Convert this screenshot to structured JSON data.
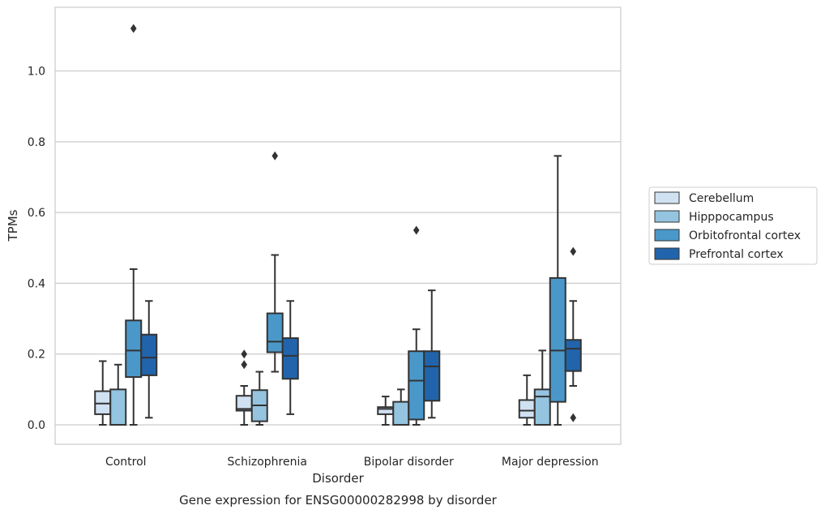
{
  "chart_data": {
    "type": "boxplot",
    "title": "",
    "caption": "Gene expression for ENSG00000282998 by disorder",
    "xlabel": "Disorder",
    "ylabel": "TPMs",
    "ylim": [
      -0.055,
      1.18
    ],
    "yticks": [
      0.0,
      0.2,
      0.4,
      0.6,
      0.8,
      1.0
    ],
    "ytick_labels": [
      "0.0",
      "0.2",
      "0.4",
      "0.6",
      "0.8",
      "1.0"
    ],
    "grid": "horizontal",
    "legend_position": "right",
    "categories": [
      "Control",
      "Schizophrenia",
      "Bipolar disorder",
      "Major depression"
    ],
    "series": [
      {
        "name": "Cerebellum",
        "color": "#d0e1f2",
        "boxes": [
          {
            "whisker_low": 0.0,
            "q1": 0.03,
            "median": 0.06,
            "q3": 0.095,
            "whisker_high": 0.18,
            "outliers": []
          },
          {
            "whisker_low": 0.0,
            "q1": 0.04,
            "median": 0.045,
            "q3": 0.082,
            "whisker_high": 0.11,
            "outliers": [
              0.2,
              0.17
            ]
          },
          {
            "whisker_low": 0.0,
            "q1": 0.03,
            "median": 0.045,
            "q3": 0.05,
            "whisker_high": 0.08,
            "outliers": []
          },
          {
            "whisker_low": 0.0,
            "q1": 0.02,
            "median": 0.04,
            "q3": 0.07,
            "whisker_high": 0.14,
            "outliers": []
          }
        ]
      },
      {
        "name": "Hipppocampus",
        "color": "#94c4df",
        "boxes": [
          {
            "whisker_low": 0.0,
            "q1": 0.0,
            "median": 0.0,
            "q3": 0.1,
            "whisker_high": 0.17,
            "outliers": []
          },
          {
            "whisker_low": 0.0,
            "q1": 0.01,
            "median": 0.055,
            "q3": 0.098,
            "whisker_high": 0.15,
            "outliers": []
          },
          {
            "whisker_low": 0.0,
            "q1": 0.0,
            "median": 0.0,
            "q3": 0.065,
            "whisker_high": 0.1,
            "outliers": []
          },
          {
            "whisker_low": 0.0,
            "q1": 0.0,
            "median": 0.08,
            "q3": 0.1,
            "whisker_high": 0.21,
            "outliers": []
          }
        ]
      },
      {
        "name": "Orbitofrontal cortex",
        "color": "#4a98c9",
        "boxes": [
          {
            "whisker_low": 0.0,
            "q1": 0.135,
            "median": 0.21,
            "q3": 0.295,
            "whisker_high": 0.44,
            "outliers": [
              1.12
            ]
          },
          {
            "whisker_low": 0.15,
            "q1": 0.205,
            "median": 0.235,
            "q3": 0.315,
            "whisker_high": 0.48,
            "outliers": [
              0.76
            ]
          },
          {
            "whisker_low": 0.0,
            "q1": 0.015,
            "median": 0.125,
            "q3": 0.208,
            "whisker_high": 0.27,
            "outliers": [
              0.55
            ]
          },
          {
            "whisker_low": 0.0,
            "q1": 0.065,
            "median": 0.21,
            "q3": 0.415,
            "whisker_high": 0.76,
            "outliers": []
          }
        ]
      },
      {
        "name": "Prefrontal cortex",
        "color": "#2164ab",
        "boxes": [
          {
            "whisker_low": 0.02,
            "q1": 0.14,
            "median": 0.19,
            "q3": 0.255,
            "whisker_high": 0.35,
            "outliers": []
          },
          {
            "whisker_low": 0.03,
            "q1": 0.13,
            "median": 0.195,
            "q3": 0.245,
            "whisker_high": 0.35,
            "outliers": []
          },
          {
            "whisker_low": 0.02,
            "q1": 0.068,
            "median": 0.165,
            "q3": 0.208,
            "whisker_high": 0.38,
            "outliers": []
          },
          {
            "whisker_low": 0.11,
            "q1": 0.152,
            "median": 0.215,
            "q3": 0.24,
            "whisker_high": 0.35,
            "outliers": [
              0.49,
              0.02
            ]
          }
        ]
      }
    ]
  }
}
